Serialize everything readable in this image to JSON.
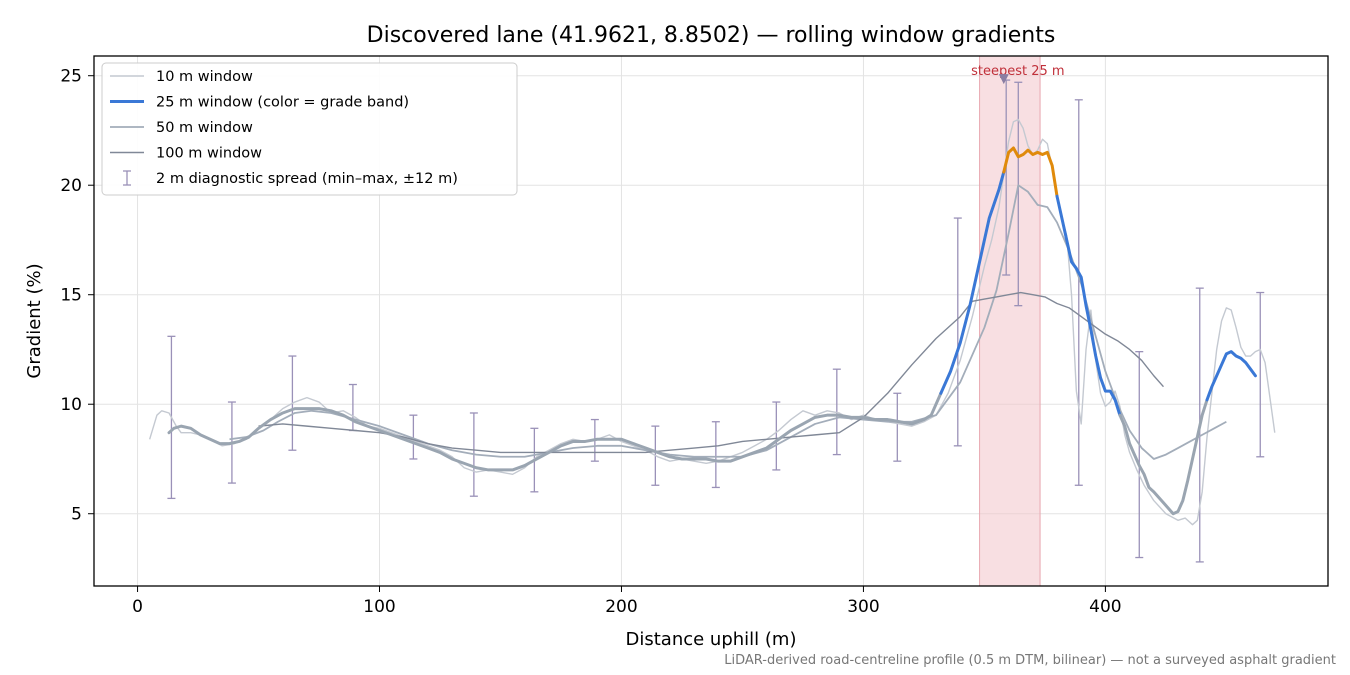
{
  "chart_data": {
    "type": "line",
    "title": "Discovered lane (41.9621, 8.8502) — rolling window gradients",
    "xlabel": "Distance uphill (m)",
    "ylabel": "Gradient (%)",
    "xlim": [
      -18,
      492
    ],
    "ylim": [
      1.7,
      25.9
    ],
    "xticks": [
      0,
      100,
      200,
      300,
      400
    ],
    "yticks": [
      5,
      10,
      15,
      20,
      25
    ],
    "grid": true,
    "legend_position": "top-left",
    "footnote": "LiDAR-derived road-centreline profile (0.5 m DTM, bilinear) — not a surveyed asphalt gradient",
    "highlight": {
      "x_start": 348,
      "x_end": 373,
      "label": "steepest 25 m",
      "marker_x": 358,
      "marker_y": 24.8,
      "color": "#f2c4ca"
    },
    "series": [
      {
        "name": "10 m window",
        "color": "#c4c9d1",
        "width": 1.4,
        "x": [
          5,
          8,
          10,
          13,
          16,
          18,
          22,
          26,
          30,
          35,
          40,
          45,
          50,
          55,
          60,
          65,
          70,
          75,
          80,
          85,
          90,
          95,
          100,
          105,
          110,
          115,
          120,
          125,
          130,
          135,
          140,
          145,
          150,
          155,
          160,
          165,
          170,
          175,
          180,
          185,
          190,
          195,
          200,
          205,
          210,
          215,
          220,
          225,
          230,
          235,
          240,
          245,
          250,
          255,
          260,
          265,
          270,
          275,
          280,
          285,
          290,
          295,
          300,
          305,
          310,
          315,
          320,
          325,
          330,
          335,
          340,
          345,
          350,
          353,
          356,
          358,
          360,
          362,
          364,
          366,
          368,
          370,
          372,
          374,
          376,
          378,
          380,
          382,
          384,
          386,
          388,
          390,
          392,
          394,
          396,
          398,
          400,
          402,
          404,
          406,
          408,
          410,
          413,
          416,
          420,
          425,
          430,
          433,
          436,
          438,
          440,
          442,
          444,
          446,
          448,
          450,
          452,
          454,
          456,
          458,
          460,
          462,
          464,
          466,
          468,
          470
        ],
        "y": [
          8.4,
          9.5,
          9.7,
          9.6,
          9.0,
          8.7,
          8.7,
          8.6,
          8.4,
          8.1,
          8.2,
          8.4,
          8.9,
          9.3,
          9.8,
          10.1,
          10.3,
          10.1,
          9.6,
          9.7,
          9.4,
          9.0,
          8.9,
          8.7,
          8.5,
          8.3,
          8.1,
          7.9,
          7.6,
          7.1,
          6.9,
          7.0,
          6.9,
          6.8,
          7.1,
          7.6,
          7.9,
          8.2,
          8.4,
          8.3,
          8.4,
          8.6,
          8.3,
          8.1,
          7.9,
          7.6,
          7.4,
          7.5,
          7.4,
          7.3,
          7.4,
          7.6,
          7.8,
          8.1,
          8.4,
          8.8,
          9.3,
          9.7,
          9.5,
          9.7,
          9.6,
          9.3,
          9.5,
          9.3,
          9.2,
          9.1,
          9.0,
          9.2,
          9.5,
          10.5,
          12.0,
          14.0,
          16.3,
          17.5,
          19.0,
          20.5,
          22.0,
          22.9,
          23.0,
          22.6,
          21.8,
          21.4,
          21.6,
          22.1,
          21.9,
          20.8,
          19.5,
          18.5,
          17.7,
          15.0,
          10.6,
          9.1,
          12.5,
          14.3,
          12.0,
          10.5,
          9.9,
          10.1,
          10.6,
          9.9,
          8.6,
          7.8,
          7.0,
          6.3,
          5.6,
          5.0,
          4.7,
          4.8,
          4.5,
          4.7,
          6.0,
          8.5,
          10.5,
          12.5,
          13.8,
          14.4,
          14.3,
          13.5,
          12.6,
          12.2,
          12.2,
          12.4,
          12.5,
          11.9,
          10.3,
          8.7
        ]
      },
      {
        "name": "25 m window (color = grade band)",
        "color": "#3a78d6",
        "width": 3,
        "band_colors": {
          "default": "#9aa5b1",
          "mid": "#3a78d6",
          "steep": "#e08a0b"
        },
        "band_thresholds": [
          10,
          20
        ],
        "x": [
          13,
          15,
          18,
          22,
          26,
          30,
          34,
          38,
          42,
          46,
          50,
          55,
          60,
          65,
          70,
          75,
          80,
          85,
          90,
          95,
          100,
          105,
          110,
          115,
          120,
          125,
          130,
          135,
          140,
          145,
          150,
          155,
          160,
          165,
          170,
          175,
          180,
          185,
          190,
          195,
          200,
          205,
          210,
          215,
          220,
          225,
          230,
          235,
          240,
          245,
          250,
          255,
          260,
          265,
          270,
          275,
          280,
          285,
          290,
          295,
          300,
          305,
          310,
          315,
          320,
          325,
          328,
          332,
          336,
          340,
          344,
          348,
          352,
          356,
          358,
          360,
          362,
          364,
          366,
          368,
          370,
          372,
          374,
          376,
          378,
          380,
          382,
          384,
          386,
          388,
          390,
          392,
          394,
          396,
          398,
          400,
          402,
          404,
          406,
          408,
          410,
          412,
          414,
          416,
          418,
          420,
          424,
          428,
          430,
          432,
          434,
          436,
          438,
          440,
          442,
          444,
          446,
          448,
          450,
          452,
          454,
          456,
          458,
          460,
          462
        ],
        "y": [
          8.7,
          8.9,
          9.0,
          8.9,
          8.6,
          8.4,
          8.2,
          8.2,
          8.3,
          8.5,
          8.9,
          9.3,
          9.6,
          9.8,
          9.8,
          9.8,
          9.7,
          9.5,
          9.2,
          9.0,
          8.8,
          8.6,
          8.4,
          8.2,
          8.0,
          7.8,
          7.5,
          7.3,
          7.1,
          7.0,
          7.0,
          7.0,
          7.2,
          7.5,
          7.8,
          8.1,
          8.3,
          8.3,
          8.4,
          8.4,
          8.4,
          8.2,
          8.0,
          7.8,
          7.6,
          7.5,
          7.5,
          7.5,
          7.4,
          7.4,
          7.6,
          7.8,
          8.0,
          8.4,
          8.8,
          9.1,
          9.4,
          9.5,
          9.5,
          9.4,
          9.4,
          9.3,
          9.3,
          9.2,
          9.1,
          9.3,
          9.5,
          10.5,
          11.5,
          12.8,
          14.5,
          16.5,
          18.5,
          19.8,
          20.6,
          21.5,
          21.7,
          21.3,
          21.4,
          21.6,
          21.4,
          21.5,
          21.4,
          21.5,
          20.9,
          19.5,
          18.5,
          17.5,
          16.5,
          16.2,
          15.8,
          14.5,
          13.4,
          12.2,
          11.2,
          10.6,
          10.6,
          10.2,
          9.5,
          9.0,
          8.2,
          7.7,
          7.2,
          6.8,
          6.2,
          6.0,
          5.5,
          5.0,
          5.1,
          5.6,
          6.5,
          7.5,
          8.5,
          9.5,
          10.2,
          10.8,
          11.3,
          11.8,
          12.3,
          12.4,
          12.2,
          12.1,
          11.9,
          11.6,
          11.3
        ]
      },
      {
        "name": "50 m window",
        "color": "#a3adba",
        "width": 1.8,
        "x": [
          38,
          45,
          52,
          58,
          65,
          72,
          80,
          90,
          100,
          110,
          120,
          130,
          140,
          150,
          160,
          170,
          180,
          190,
          200,
          210,
          220,
          230,
          240,
          250,
          260,
          270,
          280,
          290,
          300,
          310,
          320,
          330,
          340,
          350,
          355,
          360,
          364,
          368,
          372,
          376,
          380,
          385,
          390,
          395,
          400,
          405,
          410,
          415,
          420,
          425,
          430,
          435,
          440,
          445,
          450
        ],
        "y": [
          8.4,
          8.5,
          8.8,
          9.2,
          9.6,
          9.7,
          9.6,
          9.3,
          9.0,
          8.6,
          8.2,
          7.9,
          7.7,
          7.6,
          7.6,
          7.8,
          8.0,
          8.1,
          8.1,
          7.9,
          7.7,
          7.6,
          7.6,
          7.6,
          7.9,
          8.5,
          9.1,
          9.4,
          9.3,
          9.2,
          9.2,
          9.5,
          11.0,
          13.5,
          15.2,
          17.8,
          20.0,
          19.7,
          19.1,
          19.0,
          18.3,
          17.0,
          15.5,
          13.5,
          11.5,
          10.0,
          8.8,
          8.0,
          7.5,
          7.7,
          8.0,
          8.3,
          8.6,
          8.9,
          9.2
        ]
      },
      {
        "name": "100 m window",
        "color": "#808897",
        "width": 1.4,
        "x": [
          50,
          60,
          70,
          80,
          90,
          100,
          110,
          120,
          130,
          140,
          150,
          160,
          170,
          180,
          190,
          200,
          210,
          220,
          230,
          240,
          250,
          260,
          270,
          280,
          290,
          300,
          310,
          320,
          330,
          340,
          345,
          350,
          355,
          360,
          365,
          370,
          375,
          380,
          385,
          390,
          395,
          400,
          405,
          410,
          415,
          420,
          424
        ],
        "y": [
          9.0,
          9.1,
          9.0,
          8.9,
          8.8,
          8.7,
          8.5,
          8.2,
          8.0,
          7.9,
          7.8,
          7.8,
          7.8,
          7.8,
          7.8,
          7.8,
          7.8,
          7.9,
          8.0,
          8.1,
          8.3,
          8.4,
          8.5,
          8.6,
          8.7,
          9.4,
          10.5,
          11.8,
          13.0,
          14.0,
          14.7,
          14.8,
          14.9,
          15.0,
          15.1,
          15.0,
          14.9,
          14.6,
          14.4,
          14.0,
          13.6,
          13.2,
          12.9,
          12.5,
          12.0,
          11.3,
          10.8
        ]
      }
    ],
    "error_bars": {
      "name": "2 m diagnostic spread (min–max, ±12 m)",
      "color": "#9a91b8",
      "points": [
        {
          "x": 14,
          "y": 9.0,
          "lo": 5.7,
          "hi": 13.1
        },
        {
          "x": 39,
          "y": 8.2,
          "lo": 6.4,
          "hi": 10.1
        },
        {
          "x": 64,
          "y": 9.7,
          "lo": 7.9,
          "hi": 12.2
        },
        {
          "x": 89,
          "y": 9.5,
          "lo": 8.8,
          "hi": 10.9
        },
        {
          "x": 114,
          "y": 8.3,
          "lo": 7.5,
          "hi": 9.5
        },
        {
          "x": 139,
          "y": 7.2,
          "lo": 5.8,
          "hi": 9.6
        },
        {
          "x": 164,
          "y": 7.2,
          "lo": 6.0,
          "hi": 8.9
        },
        {
          "x": 189,
          "y": 8.4,
          "lo": 7.4,
          "hi": 9.3
        },
        {
          "x": 214,
          "y": 8.1,
          "lo": 6.3,
          "hi": 9.0
        },
        {
          "x": 239,
          "y": 7.4,
          "lo": 6.2,
          "hi": 9.2
        },
        {
          "x": 264,
          "y": 8.6,
          "lo": 7.0,
          "hi": 10.1
        },
        {
          "x": 289,
          "y": 9.3,
          "lo": 7.7,
          "hi": 11.6
        },
        {
          "x": 314,
          "y": 9.2,
          "lo": 7.4,
          "hi": 10.5
        },
        {
          "x": 339,
          "y": 12.8,
          "lo": 8.1,
          "hi": 18.5
        },
        {
          "x": 359,
          "y": 21.0,
          "lo": 15.9,
          "hi": 24.8
        },
        {
          "x": 364,
          "y": 21.4,
          "lo": 14.5,
          "hi": 24.7
        },
        {
          "x": 389,
          "y": 16.2,
          "lo": 6.3,
          "hi": 23.9
        },
        {
          "x": 414,
          "y": 8.0,
          "lo": 3.0,
          "hi": 12.4
        },
        {
          "x": 439,
          "y": 7.8,
          "lo": 2.8,
          "hi": 15.3
        },
        {
          "x": 464,
          "y": 11.3,
          "lo": 7.6,
          "hi": 15.1
        }
      ]
    }
  }
}
